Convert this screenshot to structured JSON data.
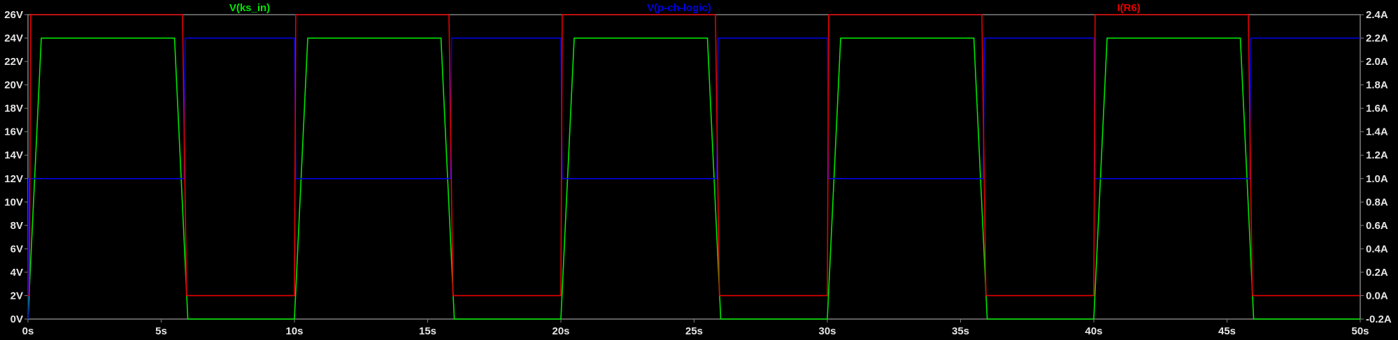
{
  "chart_data": {
    "type": "line",
    "x_ticks": [
      "0s",
      "5s",
      "10s",
      "15s",
      "20s",
      "25s",
      "30s",
      "35s",
      "40s",
      "45s",
      "50s"
    ],
    "y_left_ticks": [
      "0V",
      "2V",
      "4V",
      "6V",
      "8V",
      "10V",
      "12V",
      "14V",
      "16V",
      "18V",
      "20V",
      "22V",
      "24V",
      "26V"
    ],
    "y_right_ticks": [
      "-0.2A",
      "0.0A",
      "0.2A",
      "0.4A",
      "0.6A",
      "0.8A",
      "1.0A",
      "1.2A",
      "1.4A",
      "1.6A",
      "1.8A",
      "2.0A",
      "2.2A",
      "2.4A"
    ],
    "xlim": [
      0,
      50
    ],
    "ylim_left": [
      0,
      26
    ],
    "ylim_right": [
      -0.2,
      2.4
    ],
    "background": "#000000",
    "series": [
      {
        "name": "V(ks_in)",
        "axis": "left",
        "color": "#00e600",
        "x": [
          0,
          0.5,
          5.5,
          6,
          10,
          10.5,
          15.5,
          16,
          20,
          20.5,
          25.5,
          26,
          30,
          30.5,
          35.5,
          36,
          40,
          40.5,
          45.5,
          46,
          50
        ],
        "y": [
          0,
          24,
          24,
          0,
          0,
          24,
          24,
          0,
          0,
          24,
          24,
          0,
          0,
          24,
          24,
          0,
          0,
          24,
          24,
          0,
          0
        ]
      },
      {
        "name": "V(p-ch-logic)",
        "axis": "left",
        "color": "#0000e6",
        "x": [
          0,
          0.02,
          5.85,
          5.9,
          10,
          10.05,
          15.85,
          15.9,
          20,
          20.05,
          25.85,
          25.9,
          30,
          30.05,
          35.85,
          35.9,
          40,
          40.05,
          45.85,
          45.9,
          50
        ],
        "y": [
          0,
          12,
          12,
          24,
          24,
          12,
          12,
          24,
          24,
          12,
          12,
          24,
          24,
          12,
          12,
          24,
          24,
          12,
          12,
          24,
          24
        ]
      },
      {
        "name": "I(R6)",
        "axis": "right",
        "color": "#e60000",
        "x": [
          0,
          0.05,
          0.1,
          5.8,
          5.95,
          10,
          10.05,
          15.8,
          15.95,
          20,
          20.05,
          25.8,
          25.95,
          30,
          30.05,
          35.8,
          35.95,
          40,
          40.05,
          45.8,
          45.95,
          50
        ],
        "y": [
          0,
          0,
          2.4,
          2.4,
          0,
          0,
          2.4,
          2.4,
          0,
          0,
          2.4,
          2.4,
          0,
          0,
          2.4,
          2.4,
          0,
          0,
          2.4,
          2.4,
          0,
          0
        ]
      }
    ],
    "legend_placement": "top",
    "grid": false
  }
}
